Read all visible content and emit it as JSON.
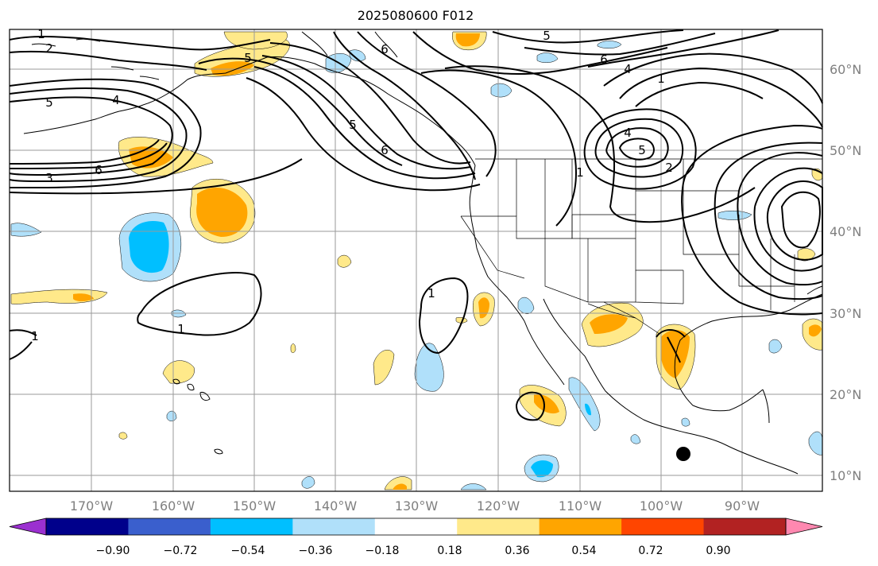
{
  "map": {
    "title": "2025080600 F012",
    "latitude_labels": [
      "60°N",
      "50°N",
      "40°N",
      "30°N",
      "20°N",
      "10°N"
    ],
    "longitude_labels": [
      "170°W",
      "160°W",
      "150°W",
      "140°W",
      "130°W",
      "120°W",
      "110°W",
      "100°W",
      "90°W"
    ],
    "contour_labels": [
      "1",
      "2",
      "5",
      "4",
      "5",
      "6",
      "3",
      "6",
      "5",
      "6",
      "6",
      "5",
      "4",
      "1",
      "4",
      "5",
      "2",
      "1",
      "1",
      "1",
      "1"
    ],
    "marker": "storm-center-dot"
  },
  "colorbar": {
    "tick_labels": [
      "−0.90",
      "−0.72",
      "−0.54",
      "−0.36",
      "−0.18",
      "0.18",
      "0.36",
      "0.54",
      "0.72",
      "0.90"
    ],
    "colors": [
      "#9b30d0",
      "#00008b",
      "#3a5fcd",
      "#00bfff",
      "#b0e0fa",
      "#ffffff",
      "#ffe98a",
      "#ffa500",
      "#ff4500",
      "#b22222",
      "#ff88b0"
    ]
  },
  "shading_colors": {
    "light_yellow": "#ffe98a",
    "orange": "#ffa500",
    "light_blue": "#b0e0fa",
    "blue": "#00bfff"
  }
}
